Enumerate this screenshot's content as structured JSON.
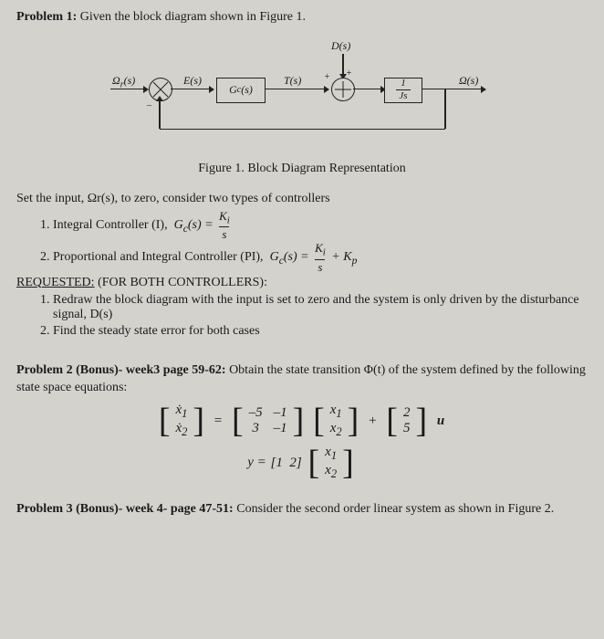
{
  "p1": {
    "heading": "Problem 1:",
    "intro": "Given the block diagram shown in Figure 1.",
    "diagram": {
      "Ds": "D(s)",
      "OmegaRs": "Ω<sub>r</sub>(s)",
      "Es": "E(s)",
      "Gcs": "G<sub>c</sub>(s)",
      "Ts": "T(s)",
      "frac_num": "1",
      "frac_den": "Js",
      "Omegas": "Ω(s)",
      "caption": "Figure 1. Block Diagram Representation"
    },
    "set_input": "Set the input, Ωr(s), to zero, consider two types of controllers",
    "items": [
      "Integral Controller (I),",
      "Proportional and Integral Controller (PI),"
    ],
    "formula1_lhs": "G<sub>c</sub>(s) =",
    "formula1_num": "K<sub>i</sub>",
    "formula1_den": "s",
    "formula2_lhs": "G<sub>c</sub>(s) =",
    "formula2_num": "K<sub>i</sub>",
    "formula2_den": "s",
    "formula2_tail": "+ K<sub>p</sub>",
    "requested": "REQUESTED:",
    "requested_tail": " (FOR BOTH CONTROLLERS):",
    "req_items": [
      "Redraw the block diagram with the input is set to zero and the system is only driven by the disturbance signal, D(s)",
      "Find the steady state error for both cases"
    ]
  },
  "p2": {
    "heading": "Problem 2 (Bonus)- week3 page 59-62:",
    "text": "Obtain the state transition Φ(t) of the system defined by the following state space equations:",
    "A": [
      [
        "–5",
        "–1"
      ],
      [
        "3",
        "–1"
      ]
    ],
    "x": [
      [
        "x<sub>1</sub>"
      ],
      [
        "x<sub>2</sub>"
      ]
    ],
    "xdot": [
      [
        "ẋ<sub>1</sub>"
      ],
      [
        "ẋ<sub>2</sub>"
      ]
    ],
    "B": [
      [
        "2"
      ],
      [
        "5"
      ]
    ],
    "u": "u",
    "y_lhs": "y =",
    "C": [
      [
        "1",
        "2"
      ]
    ]
  },
  "p3": {
    "heading": "Problem 3 (Bonus)- week 4- page 47-51:",
    "text": "Consider the second order linear system as shown in Figure 2."
  }
}
